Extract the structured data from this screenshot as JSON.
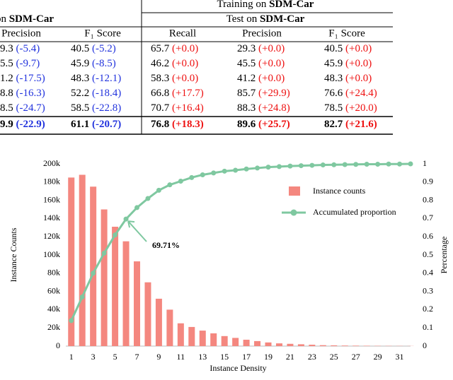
{
  "table": {
    "header": {
      "group_left": {
        "pre": "on ",
        "bold": "SDM-Car"
      },
      "group_right": {
        "pre": "Training on ",
        "bold": "SDM-Car"
      },
      "sub_right": {
        "pre": "Test on ",
        "bold": "SDM-Car"
      }
    },
    "columns": [
      "Precision",
      "F₁ Score",
      "Recall",
      "Precision",
      "F₁ Score"
    ],
    "rows": [
      [
        [
          "9.3",
          "(-5.4)"
        ],
        [
          "40.5",
          "(-5.2)"
        ],
        [
          "65.7",
          "(+0.0)"
        ],
        [
          "29.3",
          "(+0.0)"
        ],
        [
          "40.5",
          "(+0.0)"
        ]
      ],
      [
        [
          "5.5",
          "(-9.7)"
        ],
        [
          "45.9",
          "(-8.5)"
        ],
        [
          "46.2",
          "(+0.0)"
        ],
        [
          "45.5",
          "(+0.0)"
        ],
        [
          "45.9",
          "(+0.0)"
        ]
      ],
      [
        [
          "1.2",
          "(-17.5)"
        ],
        [
          "48.3",
          "(-12.1)"
        ],
        [
          "58.3",
          "(+0.0)"
        ],
        [
          "41.2",
          "(+0.0)"
        ],
        [
          "48.3",
          "(+0.0)"
        ]
      ],
      [
        [
          "8.8",
          "(-16.3)"
        ],
        [
          "52.2",
          "(-18.4)"
        ],
        [
          "66.8",
          "(+17.7)"
        ],
        [
          "85.7",
          "(+29.9)"
        ],
        [
          "76.6",
          "(+24.4)"
        ]
      ],
      [
        [
          "8.5",
          "(-24.7)"
        ],
        [
          "58.5",
          "(-22.8)"
        ],
        [
          "70.7",
          "(+16.4)"
        ],
        [
          "88.3",
          "(+24.8)"
        ],
        [
          "78.5",
          "(+20.0)"
        ]
      ],
      [
        [
          "9.9",
          "(-22.9)"
        ],
        [
          "61.1",
          "(-20.7)"
        ],
        [
          "76.8",
          "(+18.3)"
        ],
        [
          "89.6",
          "(+25.7)"
        ],
        [
          "82.7",
          "(+21.6)"
        ]
      ]
    ]
  },
  "chart_data": {
    "type": "bar",
    "xlabel": "Instance Density",
    "ylabel": "Instance Counts",
    "y2label": "Percentage",
    "annotation": "69.71%",
    "x": [
      1,
      2,
      3,
      4,
      5,
      6,
      7,
      8,
      9,
      10,
      11,
      12,
      13,
      14,
      15,
      16,
      17,
      18,
      19,
      20,
      21,
      22,
      23,
      24,
      25,
      26,
      27,
      28,
      29,
      30,
      31,
      32
    ],
    "xlim": [
      0.5,
      32
    ],
    "xticks": [
      1,
      3,
      5,
      7,
      9,
      11,
      13,
      15,
      17,
      19,
      21,
      23,
      25,
      27,
      29,
      31
    ],
    "ylim": [
      0,
      200000
    ],
    "yticks": [
      0,
      {
        "value": 20000,
        "label": "20k"
      },
      {
        "value": 40000,
        "label": "40k"
      },
      {
        "value": 60000,
        "label": "60k"
      },
      {
        "value": 80000,
        "label": "80k"
      },
      {
        "value": 100000,
        "label": "100k"
      },
      {
        "value": 120000,
        "label": "120k"
      },
      {
        "value": 140000,
        "label": "140k"
      },
      {
        "value": 160000,
        "label": "160k"
      },
      {
        "value": 180000,
        "label": "180k"
      },
      {
        "value": 200000,
        "label": "200k"
      }
    ],
    "y2lim": [
      0,
      1
    ],
    "y2ticks": [
      0,
      0.1,
      0.2,
      0.3,
      0.4,
      0.5,
      0.6,
      0.7,
      0.8,
      0.9,
      1
    ],
    "series": [
      {
        "name": "Instance counts",
        "type": "bar",
        "color": "#f4877f",
        "values": [
          185000,
          188000,
          175000,
          150000,
          131000,
          115000,
          93000,
          70000,
          52000,
          40000,
          25000,
          21000,
          17000,
          14000,
          11000,
          9000,
          7000,
          5500,
          4000,
          3000,
          2500,
          2000,
          1500,
          1000,
          800,
          600,
          500,
          400,
          300,
          250,
          200,
          150
        ]
      },
      {
        "name": "Accumulated proportion",
        "type": "line",
        "axis": "y2",
        "color": "#7fc8a0",
        "values": [
          0.14,
          0.27,
          0.4,
          0.51,
          0.61,
          0.6971,
          0.76,
          0.81,
          0.855,
          0.885,
          0.905,
          0.925,
          0.94,
          0.95,
          0.96,
          0.965,
          0.972,
          0.977,
          0.982,
          0.985,
          0.988,
          0.99,
          0.992,
          0.994,
          0.995,
          0.996,
          0.997,
          0.998,
          0.998,
          0.999,
          0.999,
          1
        ]
      }
    ]
  }
}
